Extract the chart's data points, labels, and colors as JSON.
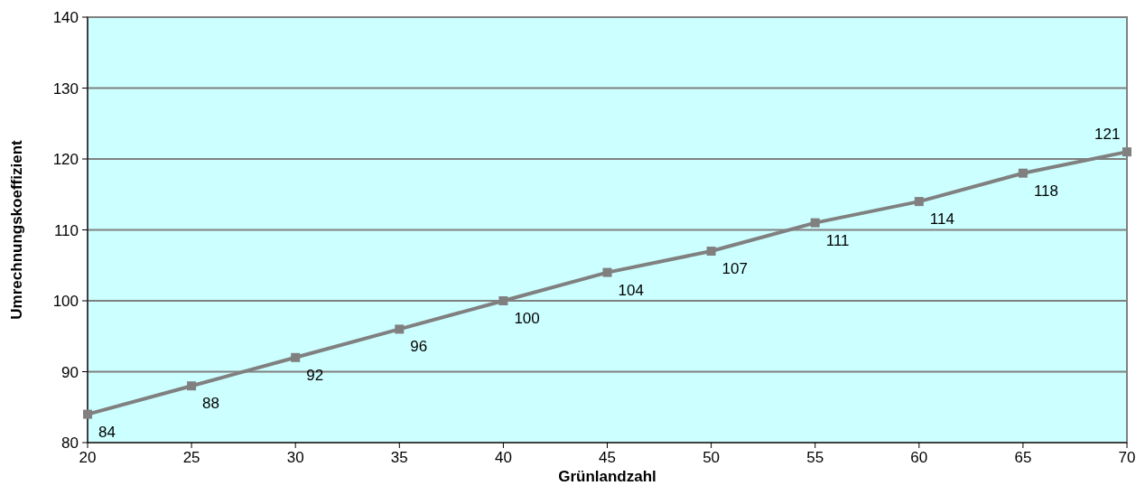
{
  "chart_data": {
    "type": "line",
    "xlabel": "Grünlandzahl",
    "ylabel": "Umrechnungskoeffizient",
    "x": [
      20,
      25,
      30,
      35,
      40,
      45,
      50,
      55,
      60,
      65,
      70
    ],
    "series": [
      {
        "color": "#808080",
        "values": [
          84,
          88,
          92,
          96,
          100,
          104,
          107,
          111,
          114,
          118,
          121
        ]
      }
    ],
    "xlim": [
      20,
      70
    ],
    "xticks": [
      20,
      25,
      30,
      35,
      40,
      45,
      50,
      55,
      60,
      65,
      70
    ],
    "ylim": [
      80,
      140
    ],
    "yticks": [
      80,
      90,
      100,
      110,
      120,
      130,
      140
    ],
    "grid": "y",
    "marker": "square",
    "line_style": "solid",
    "data_labels": true
  }
}
